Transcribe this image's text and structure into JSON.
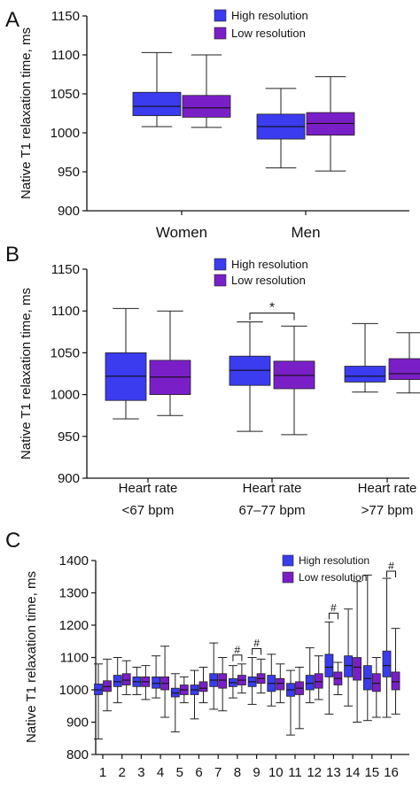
{
  "figure": {
    "panels": [
      {
        "id": "A",
        "letter": "A",
        "chart_data": {
          "type": "boxplot",
          "ylabel": "Native T1 relaxation time, ms",
          "ylim": [
            900,
            1150
          ],
          "yticks": [
            900,
            950,
            1000,
            1050,
            1100,
            1150
          ],
          "categories": [
            [
              "Women"
            ],
            [
              "Men"
            ]
          ],
          "legend": {
            "placement": "top-left",
            "entries": [
              "High resolution",
              "Low resolution"
            ]
          },
          "grid": false,
          "series": [
            {
              "name": "High resolution",
              "color": "#3b3bef",
              "boxes": [
                {
                  "category": "Women",
                  "min": 1008,
                  "q1": 1022,
                  "median": 1034,
                  "q3": 1052,
                  "max": 1103
                },
                {
                  "category": "Men",
                  "min": 955,
                  "q1": 992,
                  "median": 1008,
                  "q3": 1024,
                  "max": 1057
                }
              ]
            },
            {
              "name": "Low resolution",
              "color": "#7a1fc8",
              "boxes": [
                {
                  "category": "Women",
                  "min": 1007,
                  "q1": 1020,
                  "median": 1032,
                  "q3": 1048,
                  "max": 1100
                },
                {
                  "category": "Men",
                  "min": 951,
                  "q1": 997,
                  "median": 1012,
                  "q3": 1026,
                  "max": 1072
                }
              ]
            }
          ],
          "annotations": []
        }
      },
      {
        "id": "B",
        "letter": "B",
        "chart_data": {
          "type": "boxplot",
          "ylabel": "Native T1 relaxation time, ms",
          "ylim": [
            900,
            1150
          ],
          "yticks": [
            900,
            950,
            1000,
            1050,
            1100,
            1150
          ],
          "categories": [
            [
              "Heart rate",
              "<67 bpm"
            ],
            [
              "Heart rate",
              "67–77 bpm"
            ],
            [
              "Heart rate",
              ">77 bpm"
            ]
          ],
          "legend": {
            "placement": "top-right",
            "entries": [
              "High resolution",
              "Low resolution"
            ]
          },
          "grid": false,
          "series": [
            {
              "name": "High resolution",
              "color": "#3b3bef",
              "boxes": [
                {
                  "category": "<67 bpm",
                  "min": 971,
                  "q1": 993,
                  "median": 1022,
                  "q3": 1050,
                  "max": 1103
                },
                {
                  "category": "67–77 bpm",
                  "min": 956,
                  "q1": 1011,
                  "median": 1029,
                  "q3": 1046,
                  "max": 1087
                },
                {
                  "category": ">77 bpm",
                  "min": 1003,
                  "q1": 1015,
                  "median": 1022,
                  "q3": 1034,
                  "max": 1085
                }
              ]
            },
            {
              "name": "Low resolution",
              "color": "#7a1fc8",
              "boxes": [
                {
                  "category": "<67 bpm",
                  "min": 975,
                  "q1": 1000,
                  "median": 1021,
                  "q3": 1041,
                  "max": 1100
                },
                {
                  "category": "67–77 bpm",
                  "min": 952,
                  "q1": 1007,
                  "median": 1023,
                  "q3": 1040,
                  "max": 1082
                },
                {
                  "category": ">77 bpm",
                  "min": 1002,
                  "q1": 1018,
                  "median": 1025,
                  "q3": 1043,
                  "max": 1074
                }
              ]
            }
          ],
          "annotations": [
            {
              "type": "significance",
              "symbol": "*",
              "category": "67–77 bpm"
            }
          ]
        }
      },
      {
        "id": "C",
        "letter": "C",
        "chart_data": {
          "type": "boxplot",
          "ylabel": "Native T1 relaxation time, ms",
          "ylim": [
            800,
            1400
          ],
          "yticks": [
            800,
            900,
            1000,
            1100,
            1200,
            1300,
            1400
          ],
          "categories": [
            [
              "1"
            ],
            [
              "2"
            ],
            [
              "3"
            ],
            [
              "4"
            ],
            [
              "5"
            ],
            [
              "6"
            ],
            [
              "7"
            ],
            [
              "8"
            ],
            [
              "9"
            ],
            [
              "10"
            ],
            [
              "11"
            ],
            [
              "12"
            ],
            [
              "13"
            ],
            [
              "14"
            ],
            [
              "15"
            ],
            [
              "16"
            ]
          ],
          "legend": {
            "placement": "top-right",
            "entries": [
              "High resolution",
              "Low resolution"
            ]
          },
          "grid": false,
          "series": [
            {
              "name": "High resolution",
              "color": "#3b3bef",
              "boxes": [
                {
                  "category": "1",
                  "min": 848,
                  "q1": 985,
                  "median": 1000,
                  "q3": 1018,
                  "max": 1080
                },
                {
                  "category": "2",
                  "min": 960,
                  "q1": 1010,
                  "median": 1025,
                  "q3": 1045,
                  "max": 1100
                },
                {
                  "category": "3",
                  "min": 985,
                  "q1": 1010,
                  "median": 1025,
                  "q3": 1040,
                  "max": 1070
                },
                {
                  "category": "4",
                  "min": 975,
                  "q1": 1005,
                  "median": 1020,
                  "q3": 1040,
                  "max": 1105
                },
                {
                  "category": "5",
                  "min": 870,
                  "q1": 978,
                  "median": 990,
                  "q3": 1005,
                  "max": 1050
                },
                {
                  "category": "6",
                  "min": 910,
                  "q1": 985,
                  "median": 1000,
                  "q3": 1015,
                  "max": 1060
                },
                {
                  "category": "7",
                  "min": 940,
                  "q1": 1010,
                  "median": 1030,
                  "q3": 1050,
                  "max": 1145
                },
                {
                  "category": "8",
                  "min": 975,
                  "q1": 1010,
                  "median": 1022,
                  "q3": 1035,
                  "max": 1075
                },
                {
                  "category": "9",
                  "min": 955,
                  "q1": 1010,
                  "median": 1025,
                  "q3": 1040,
                  "max": 1100
                },
                {
                  "category": "10",
                  "min": 950,
                  "q1": 995,
                  "median": 1020,
                  "q3": 1045,
                  "max": 1110
                },
                {
                  "category": "11",
                  "min": 860,
                  "q1": 980,
                  "median": 1000,
                  "q3": 1020,
                  "max": 1060
                },
                {
                  "category": "12",
                  "min": 960,
                  "q1": 1000,
                  "median": 1020,
                  "q3": 1045,
                  "max": 1130
                },
                {
                  "category": "13",
                  "min": 925,
                  "q1": 1040,
                  "median": 1070,
                  "q3": 1110,
                  "max": 1210
                },
                {
                  "category": "14",
                  "min": 950,
                  "q1": 1040,
                  "median": 1075,
                  "q3": 1105,
                  "max": 1250
                },
                {
                  "category": "15",
                  "min": 905,
                  "q1": 1000,
                  "median": 1035,
                  "q3": 1075,
                  "max": 1355
                },
                {
                  "category": "16",
                  "min": 915,
                  "q1": 1040,
                  "median": 1075,
                  "q3": 1120,
                  "max": 1345
                }
              ]
            },
            {
              "name": "Low resolution",
              "color": "#7a1fc8",
              "boxes": [
                {
                  "category": "1",
                  "min": 935,
                  "q1": 995,
                  "median": 1010,
                  "q3": 1028,
                  "max": 1095
                },
                {
                  "category": "2",
                  "min": 985,
                  "q1": 1015,
                  "median": 1030,
                  "q3": 1050,
                  "max": 1090
                },
                {
                  "category": "3",
                  "min": 970,
                  "q1": 1010,
                  "median": 1025,
                  "q3": 1040,
                  "max": 1075
                },
                {
                  "category": "4",
                  "min": 915,
                  "q1": 1000,
                  "median": 1020,
                  "q3": 1040,
                  "max": 1135
                },
                {
                  "category": "5",
                  "min": 960,
                  "q1": 985,
                  "median": 1000,
                  "q3": 1015,
                  "max": 1040
                },
                {
                  "category": "6",
                  "min": 960,
                  "q1": 995,
                  "median": 1005,
                  "q3": 1025,
                  "max": 1070
                },
                {
                  "category": "7",
                  "min": 935,
                  "q1": 1005,
                  "median": 1030,
                  "q3": 1050,
                  "max": 1100
                },
                {
                  "category": "8",
                  "min": 990,
                  "q1": 1015,
                  "median": 1030,
                  "q3": 1045,
                  "max": 1080
                },
                {
                  "category": "9",
                  "min": 990,
                  "q1": 1020,
                  "median": 1035,
                  "q3": 1050,
                  "max": 1095
                },
                {
                  "category": "10",
                  "min": 960,
                  "q1": 1000,
                  "median": 1020,
                  "q3": 1035,
                  "max": 1080
                },
                {
                  "category": "11",
                  "min": 880,
                  "q1": 985,
                  "median": 1005,
                  "q3": 1025,
                  "max": 1070
                },
                {
                  "category": "12",
                  "min": 970,
                  "q1": 1005,
                  "median": 1025,
                  "q3": 1050,
                  "max": 1105
                },
                {
                  "category": "13",
                  "min": 985,
                  "q1": 1015,
                  "median": 1035,
                  "q3": 1055,
                  "max": 1085
                },
                {
                  "category": "14",
                  "min": 900,
                  "q1": 1030,
                  "median": 1070,
                  "q3": 1100,
                  "max": 1335
                },
                {
                  "category": "15",
                  "min": 915,
                  "q1": 995,
                  "median": 1020,
                  "q3": 1050,
                  "max": 1100
                },
                {
                  "category": "16",
                  "min": 925,
                  "q1": 1000,
                  "median": 1025,
                  "q3": 1055,
                  "max": 1190
                }
              ]
            }
          ],
          "annotations": [
            {
              "type": "significance",
              "symbol": "#",
              "category": "8"
            },
            {
              "type": "significance",
              "symbol": "#",
              "category": "9"
            },
            {
              "type": "significance",
              "symbol": "#",
              "category": "13"
            },
            {
              "type": "significance",
              "symbol": "#",
              "category": "16"
            }
          ]
        }
      }
    ]
  }
}
